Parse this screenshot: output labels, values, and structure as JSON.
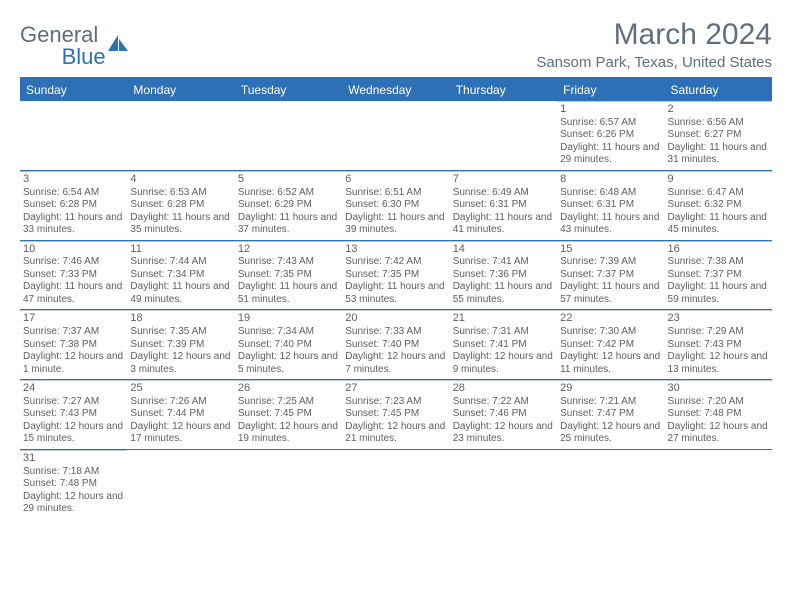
{
  "logo": {
    "text_main": "General",
    "text_accent": "Blue"
  },
  "title": "March 2024",
  "location": "Sansom Park, Texas, United States",
  "colors": {
    "header_bg": "#2d70b5",
    "text_muted": "#5f6f7d",
    "cell_text": "#606060",
    "row_border": "#2d70b5",
    "cell_divider": "#b8c8d8"
  },
  "day_names": [
    "Sunday",
    "Monday",
    "Tuesday",
    "Wednesday",
    "Thursday",
    "Friday",
    "Saturday"
  ],
  "weeks": [
    [
      {
        "n": "",
        "sr": "",
        "ss": "",
        "dl": ""
      },
      {
        "n": "",
        "sr": "",
        "ss": "",
        "dl": ""
      },
      {
        "n": "",
        "sr": "",
        "ss": "",
        "dl": ""
      },
      {
        "n": "",
        "sr": "",
        "ss": "",
        "dl": ""
      },
      {
        "n": "",
        "sr": "",
        "ss": "",
        "dl": ""
      },
      {
        "n": "1",
        "sr": "Sunrise: 6:57 AM",
        "ss": "Sunset: 6:26 PM",
        "dl": "Daylight: 11 hours and 29 minutes."
      },
      {
        "n": "2",
        "sr": "Sunrise: 6:56 AM",
        "ss": "Sunset: 6:27 PM",
        "dl": "Daylight: 11 hours and 31 minutes."
      }
    ],
    [
      {
        "n": "3",
        "sr": "Sunrise: 6:54 AM",
        "ss": "Sunset: 6:28 PM",
        "dl": "Daylight: 11 hours and 33 minutes."
      },
      {
        "n": "4",
        "sr": "Sunrise: 6:53 AM",
        "ss": "Sunset: 6:28 PM",
        "dl": "Daylight: 11 hours and 35 minutes."
      },
      {
        "n": "5",
        "sr": "Sunrise: 6:52 AM",
        "ss": "Sunset: 6:29 PM",
        "dl": "Daylight: 11 hours and 37 minutes."
      },
      {
        "n": "6",
        "sr": "Sunrise: 6:51 AM",
        "ss": "Sunset: 6:30 PM",
        "dl": "Daylight: 11 hours and 39 minutes."
      },
      {
        "n": "7",
        "sr": "Sunrise: 6:49 AM",
        "ss": "Sunset: 6:31 PM",
        "dl": "Daylight: 11 hours and 41 minutes."
      },
      {
        "n": "8",
        "sr": "Sunrise: 6:48 AM",
        "ss": "Sunset: 6:31 PM",
        "dl": "Daylight: 11 hours and 43 minutes."
      },
      {
        "n": "9",
        "sr": "Sunrise: 6:47 AM",
        "ss": "Sunset: 6:32 PM",
        "dl": "Daylight: 11 hours and 45 minutes."
      }
    ],
    [
      {
        "n": "10",
        "sr": "Sunrise: 7:46 AM",
        "ss": "Sunset: 7:33 PM",
        "dl": "Daylight: 11 hours and 47 minutes."
      },
      {
        "n": "11",
        "sr": "Sunrise: 7:44 AM",
        "ss": "Sunset: 7:34 PM",
        "dl": "Daylight: 11 hours and 49 minutes."
      },
      {
        "n": "12",
        "sr": "Sunrise: 7:43 AM",
        "ss": "Sunset: 7:35 PM",
        "dl": "Daylight: 11 hours and 51 minutes."
      },
      {
        "n": "13",
        "sr": "Sunrise: 7:42 AM",
        "ss": "Sunset: 7:35 PM",
        "dl": "Daylight: 11 hours and 53 minutes."
      },
      {
        "n": "14",
        "sr": "Sunrise: 7:41 AM",
        "ss": "Sunset: 7:36 PM",
        "dl": "Daylight: 11 hours and 55 minutes."
      },
      {
        "n": "15",
        "sr": "Sunrise: 7:39 AM",
        "ss": "Sunset: 7:37 PM",
        "dl": "Daylight: 11 hours and 57 minutes."
      },
      {
        "n": "16",
        "sr": "Sunrise: 7:38 AM",
        "ss": "Sunset: 7:37 PM",
        "dl": "Daylight: 11 hours and 59 minutes."
      }
    ],
    [
      {
        "n": "17",
        "sr": "Sunrise: 7:37 AM",
        "ss": "Sunset: 7:38 PM",
        "dl": "Daylight: 12 hours and 1 minute."
      },
      {
        "n": "18",
        "sr": "Sunrise: 7:35 AM",
        "ss": "Sunset: 7:39 PM",
        "dl": "Daylight: 12 hours and 3 minutes."
      },
      {
        "n": "19",
        "sr": "Sunrise: 7:34 AM",
        "ss": "Sunset: 7:40 PM",
        "dl": "Daylight: 12 hours and 5 minutes."
      },
      {
        "n": "20",
        "sr": "Sunrise: 7:33 AM",
        "ss": "Sunset: 7:40 PM",
        "dl": "Daylight: 12 hours and 7 minutes."
      },
      {
        "n": "21",
        "sr": "Sunrise: 7:31 AM",
        "ss": "Sunset: 7:41 PM",
        "dl": "Daylight: 12 hours and 9 minutes."
      },
      {
        "n": "22",
        "sr": "Sunrise: 7:30 AM",
        "ss": "Sunset: 7:42 PM",
        "dl": "Daylight: 12 hours and 11 minutes."
      },
      {
        "n": "23",
        "sr": "Sunrise: 7:29 AM",
        "ss": "Sunset: 7:43 PM",
        "dl": "Daylight: 12 hours and 13 minutes."
      }
    ],
    [
      {
        "n": "24",
        "sr": "Sunrise: 7:27 AM",
        "ss": "Sunset: 7:43 PM",
        "dl": "Daylight: 12 hours and 15 minutes."
      },
      {
        "n": "25",
        "sr": "Sunrise: 7:26 AM",
        "ss": "Sunset: 7:44 PM",
        "dl": "Daylight: 12 hours and 17 minutes."
      },
      {
        "n": "26",
        "sr": "Sunrise: 7:25 AM",
        "ss": "Sunset: 7:45 PM",
        "dl": "Daylight: 12 hours and 19 minutes."
      },
      {
        "n": "27",
        "sr": "Sunrise: 7:23 AM",
        "ss": "Sunset: 7:45 PM",
        "dl": "Daylight: 12 hours and 21 minutes."
      },
      {
        "n": "28",
        "sr": "Sunrise: 7:22 AM",
        "ss": "Sunset: 7:46 PM",
        "dl": "Daylight: 12 hours and 23 minutes."
      },
      {
        "n": "29",
        "sr": "Sunrise: 7:21 AM",
        "ss": "Sunset: 7:47 PM",
        "dl": "Daylight: 12 hours and 25 minutes."
      },
      {
        "n": "30",
        "sr": "Sunrise: 7:20 AM",
        "ss": "Sunset: 7:48 PM",
        "dl": "Daylight: 12 hours and 27 minutes."
      }
    ],
    [
      {
        "n": "31",
        "sr": "Sunrise: 7:18 AM",
        "ss": "Sunset: 7:48 PM",
        "dl": "Daylight: 12 hours and 29 minutes."
      },
      {
        "n": "",
        "sr": "",
        "ss": "",
        "dl": ""
      },
      {
        "n": "",
        "sr": "",
        "ss": "",
        "dl": ""
      },
      {
        "n": "",
        "sr": "",
        "ss": "",
        "dl": ""
      },
      {
        "n": "",
        "sr": "",
        "ss": "",
        "dl": ""
      },
      {
        "n": "",
        "sr": "",
        "ss": "",
        "dl": ""
      },
      {
        "n": "",
        "sr": "",
        "ss": "",
        "dl": ""
      }
    ]
  ]
}
